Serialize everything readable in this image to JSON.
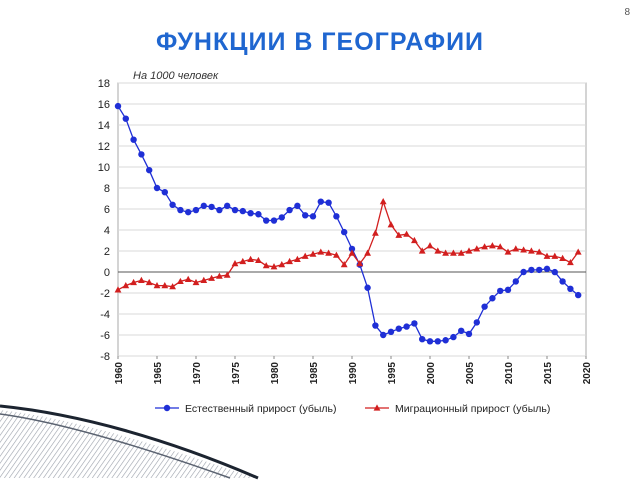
{
  "slide": {
    "number": "8",
    "title": "ФУНКЦИИ В ГЕОГРАФИИ"
  },
  "colors": {
    "title": "#1f66d0",
    "natural": "#1f2fd6",
    "migration": "#d21f1f"
  },
  "chart_data": {
    "type": "line",
    "unit_label": "На 1000 человек",
    "ylim": [
      -8,
      18
    ],
    "xlim": [
      1960,
      2020
    ],
    "yticks": [
      -8,
      -6,
      -4,
      -2,
      0,
      2,
      4,
      6,
      8,
      10,
      12,
      14,
      16,
      18
    ],
    "xticks": [
      1960,
      1965,
      1970,
      1975,
      1980,
      1985,
      1990,
      1995,
      2000,
      2005,
      2010,
      2015,
      2020
    ],
    "grid": "horizontal",
    "legend_position": "bottom",
    "series": [
      {
        "name": "Естественный прирост (убыль)",
        "marker": "circle",
        "x": [
          1960,
          1961,
          1962,
          1963,
          1964,
          1965,
          1966,
          1967,
          1968,
          1969,
          1970,
          1971,
          1972,
          1973,
          1974,
          1975,
          1976,
          1977,
          1978,
          1979,
          1980,
          1981,
          1982,
          1983,
          1984,
          1985,
          1986,
          1987,
          1988,
          1989,
          1990,
          1991,
          1992,
          1993,
          1994,
          1995,
          1996,
          1997,
          1998,
          1999,
          2000,
          2001,
          2002,
          2003,
          2004,
          2005,
          2006,
          2007,
          2008,
          2009,
          2010,
          2011,
          2012,
          2013,
          2014,
          2015,
          2016,
          2017,
          2018,
          2019
        ],
        "y": [
          15.8,
          14.6,
          12.6,
          11.2,
          9.7,
          8.0,
          7.6,
          6.4,
          5.9,
          5.7,
          5.9,
          6.3,
          6.2,
          5.9,
          6.3,
          5.9,
          5.8,
          5.6,
          5.5,
          4.9,
          4.9,
          5.2,
          5.9,
          6.3,
          5.4,
          5.3,
          6.7,
          6.6,
          5.3,
          3.8,
          2.2,
          0.7,
          -1.5,
          -5.1,
          -6.0,
          -5.7,
          -5.4,
          -5.2,
          -4.9,
          -6.4,
          -6.6,
          -6.6,
          -6.5,
          -6.2,
          -5.6,
          -5.9,
          -4.8,
          -3.3,
          -2.5,
          -1.8,
          -1.7,
          -0.9,
          0.0,
          0.2,
          0.2,
          0.3,
          -0.01,
          -0.9,
          -1.6,
          -2.2
        ]
      },
      {
        "name": "Миграционный прирост (убыль)",
        "marker": "triangle",
        "x": [
          1960,
          1961,
          1962,
          1963,
          1964,
          1965,
          1966,
          1967,
          1968,
          1969,
          1970,
          1971,
          1972,
          1973,
          1974,
          1975,
          1976,
          1977,
          1978,
          1979,
          1980,
          1981,
          1982,
          1983,
          1984,
          1985,
          1986,
          1987,
          1988,
          1989,
          1990,
          1991,
          1992,
          1993,
          1994,
          1995,
          1996,
          1997,
          1998,
          1999,
          2000,
          2001,
          2002,
          2003,
          2004,
          2005,
          2006,
          2007,
          2008,
          2009,
          2010,
          2011,
          2012,
          2013,
          2014,
          2015,
          2016,
          2017,
          2018,
          2019
        ],
        "y": [
          -1.7,
          -1.3,
          -1.0,
          -0.8,
          -1.0,
          -1.3,
          -1.3,
          -1.4,
          -0.9,
          -0.7,
          -1.0,
          -0.8,
          -0.6,
          -0.4,
          -0.3,
          0.8,
          1.0,
          1.2,
          1.1,
          0.6,
          0.5,
          0.7,
          1.0,
          1.2,
          1.5,
          1.7,
          1.9,
          1.8,
          1.6,
          0.7,
          1.8,
          0.8,
          1.8,
          3.7,
          6.7,
          4.5,
          3.5,
          3.6,
          3.0,
          2.0,
          2.5,
          2.0,
          1.8,
          1.8,
          1.8,
          2.0,
          2.2,
          2.4,
          2.5,
          2.4,
          1.9,
          2.2,
          2.1,
          2.0,
          1.9,
          1.5,
          1.5,
          1.3,
          0.9,
          1.9
        ]
      }
    ]
  }
}
